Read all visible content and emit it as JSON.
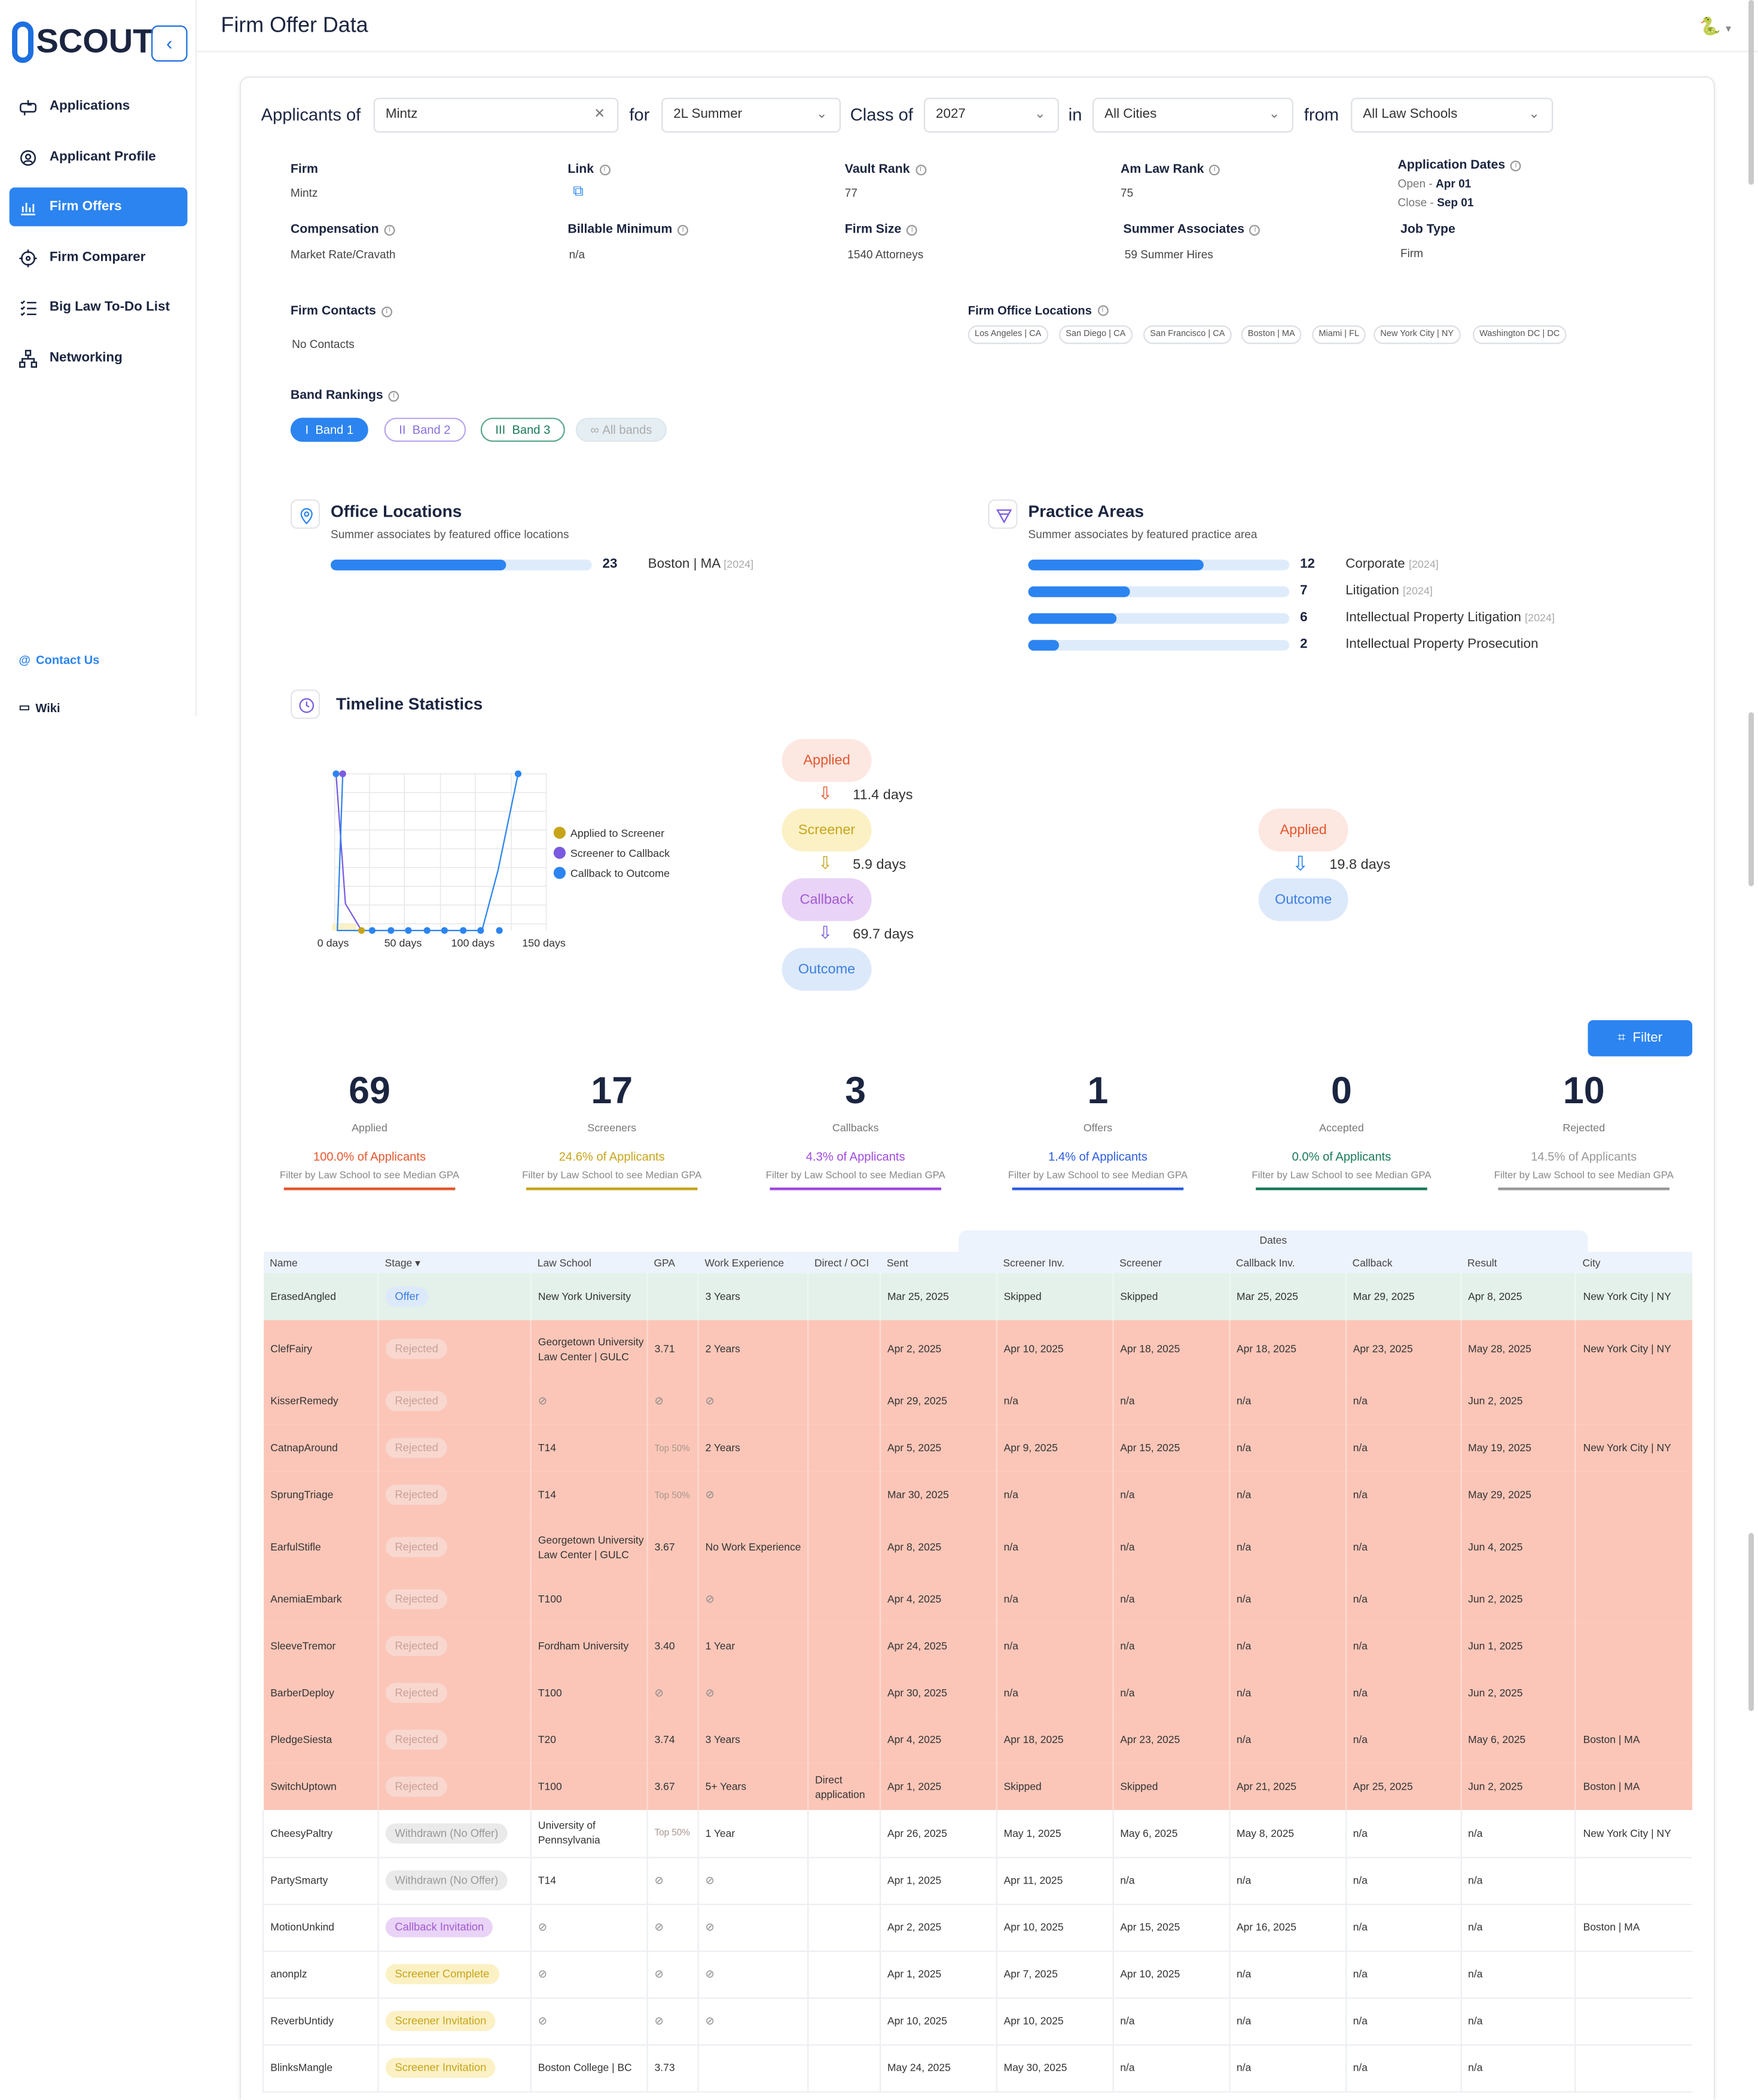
{
  "app": {
    "logo": "SCOUT",
    "page_title": "Firm Offer Data"
  },
  "sidebar": {
    "items": [
      {
        "label": "Applications",
        "icon": "mailbox-icon"
      },
      {
        "label": "Applicant Profile",
        "icon": "profile-gear-icon"
      },
      {
        "label": "Firm Offers",
        "icon": "bar-chart-icon"
      },
      {
        "label": "Firm Comparer",
        "icon": "crosshair-icon"
      },
      {
        "label": "Big Law To-Do List",
        "icon": "checklist-icon"
      },
      {
        "label": "Networking",
        "icon": "network-icon"
      }
    ],
    "contact": "Contact Us",
    "wiki": "Wiki"
  },
  "filters": {
    "applicants_of": "Applicants of",
    "firm": "Mintz",
    "for": "for",
    "program": "2L Summer",
    "class_of": "Class of",
    "year": "2027",
    "in": "in",
    "city": "All Cities",
    "from": "from",
    "school": "All Law Schools"
  },
  "info": {
    "firm_label": "Firm",
    "firm": "Mintz",
    "link_label": "Link",
    "vault_label": "Vault Rank",
    "vault": "77",
    "amlaw_label": "Am Law Rank",
    "amlaw": "75",
    "appdates_label": "Application Dates",
    "open_label": "Open - ",
    "open": "Apr 01",
    "close_label": "Close - ",
    "close": "Sep 01",
    "comp_label": "Compensation",
    "comp": "Market Rate/Cravath",
    "billable_label": "Billable Minimum",
    "billable": "n/a",
    "size_label": "Firm Size",
    "size": "1540 Attorneys",
    "summer_label": "Summer Associates",
    "summer": "59 Summer Hires",
    "jobtype_label": "Job Type",
    "jobtype": "Firm",
    "contacts_label": "Firm Contacts",
    "contacts": "No Contacts",
    "offices_label": "Firm Office Locations",
    "offices": [
      "Los Angeles | CA",
      "San Diego | CA",
      "San Francisco | CA",
      "Boston | MA",
      "Miami | FL",
      "New York City | NY",
      "Washington DC | DC"
    ],
    "band_label": "Band Rankings",
    "bands": [
      "Band 1",
      "Band 2",
      "Band 3",
      "All bands"
    ]
  },
  "office_locations": {
    "title": "Office Locations",
    "subtitle": "Summer associates by featured office locations",
    "rows": [
      {
        "count": "23",
        "label": "Boston | MA",
        "year": "[2024]",
        "fill": 0.67
      }
    ]
  },
  "practice_areas": {
    "title": "Practice Areas",
    "subtitle": "Summer associates by featured practice area",
    "rows": [
      {
        "count": "12",
        "label": "Corporate",
        "year": "[2024]",
        "fill": 0.67
      },
      {
        "count": "7",
        "label": "Litigation",
        "year": "[2024]",
        "fill": 0.39
      },
      {
        "count": "6",
        "label": "Intellectual Property Litigation",
        "year": "[2024]",
        "fill": 0.34
      },
      {
        "count": "2",
        "label": "Intellectual Property Prosecution",
        "year": "",
        "fill": 0.12
      }
    ]
  },
  "timeline": {
    "title": "Timeline Statistics",
    "legend": [
      "Applied to Screener",
      "Screener to Callback",
      "Callback to Outcome"
    ],
    "x_ticks": [
      "0 days",
      "50 days",
      "100 days",
      "150 days"
    ],
    "flow1": {
      "applied": "Applied",
      "d1": "11.4 days",
      "screener": "Screener",
      "d2": "5.9 days",
      "callback": "Callback",
      "d3": "69.7 days",
      "outcome": "Outcome"
    },
    "flow2": {
      "applied": "Applied",
      "d1": "19.8 days",
      "outcome": "Outcome"
    }
  },
  "filter_button": "Filter",
  "stats": [
    {
      "n": "69",
      "c": "Applied",
      "p": "100.0% of Applicants",
      "f": "Filter by Law School to see Median GPA",
      "color": "#e4572e"
    },
    {
      "n": "17",
      "c": "Screeners",
      "p": "24.6% of Applicants",
      "f": "Filter by Law School to see Median GPA",
      "color": "#c8a41a"
    },
    {
      "n": "3",
      "c": "Callbacks",
      "p": "4.3% of Applicants",
      "f": "Filter by Law School to see Median GPA",
      "color": "#a04ae0"
    },
    {
      "n": "1",
      "c": "Offers",
      "p": "1.4% of Applicants",
      "f": "Filter by Law School to see Median GPA",
      "color": "#2c5de0"
    },
    {
      "n": "0",
      "c": "Accepted",
      "p": "0.0% of Applicants",
      "f": "Filter by Law School to see Median GPA",
      "color": "#1a7a5a"
    },
    {
      "n": "10",
      "c": "Rejected",
      "p": "14.5% of Applicants",
      "f": "Filter by Law School to see Median GPA",
      "color": "#999999"
    }
  ],
  "table": {
    "dates_group": "Dates",
    "headers": [
      "Name",
      "Stage",
      "Law School",
      "GPA",
      "Work Experience",
      "Direct / OCI",
      "Sent",
      "Screener Inv.",
      "Screener",
      "Callback Inv.",
      "Callback",
      "Result",
      "City"
    ],
    "rows": [
      [
        "ErasedAngled",
        "Offer",
        "New York University",
        "",
        "3 Years",
        "",
        "Mar 25, 2025",
        "Skipped",
        "Skipped",
        "Mar 25, 2025",
        "Mar 29, 2025",
        "Apr 8, 2025",
        "New York City | NY"
      ],
      [
        "ClefFairy",
        "Rejected",
        "Georgetown University Law Center | GULC",
        "3.71",
        "2 Years",
        "",
        "Apr 2, 2025",
        "Apr 10, 2025",
        "Apr 18, 2025",
        "Apr 18, 2025",
        "Apr 23, 2025",
        "May 28, 2025",
        "New York City | NY"
      ],
      [
        "KisserRemedy",
        "Rejected",
        "~",
        "~",
        "~",
        "",
        "Apr 29, 2025",
        "n/a",
        "n/a",
        "n/a",
        "n/a",
        "Jun 2, 2025",
        ""
      ],
      [
        "CatnapAround",
        "Rejected",
        "T14",
        "Top 50%",
        "2 Years",
        "",
        "Apr 5, 2025",
        "Apr 9, 2025",
        "Apr 15, 2025",
        "n/a",
        "n/a",
        "May 19, 2025",
        "New York City | NY"
      ],
      [
        "SprungTriage",
        "Rejected",
        "T14",
        "Top 50%",
        "~",
        "",
        "Mar 30, 2025",
        "n/a",
        "n/a",
        "n/a",
        "n/a",
        "May 29, 2025",
        ""
      ],
      [
        "EarfulStifle",
        "Rejected",
        "Georgetown University Law Center | GULC",
        "3.67",
        "No Work Experience",
        "",
        "Apr 8, 2025",
        "n/a",
        "n/a",
        "n/a",
        "n/a",
        "Jun 4, 2025",
        ""
      ],
      [
        "AnemiaEmbark",
        "Rejected",
        "T100",
        "",
        "~",
        "",
        "Apr 4, 2025",
        "n/a",
        "n/a",
        "n/a",
        "n/a",
        "Jun 2, 2025",
        ""
      ],
      [
        "SleeveTremor",
        "Rejected",
        "Fordham University",
        "3.40",
        "1 Year",
        "",
        "Apr 24, 2025",
        "n/a",
        "n/a",
        "n/a",
        "n/a",
        "Jun 1, 2025",
        ""
      ],
      [
        "BarberDeploy",
        "Rejected",
        "T100",
        "~",
        "~",
        "",
        "Apr 30, 2025",
        "n/a",
        "n/a",
        "n/a",
        "n/a",
        "Jun 2, 2025",
        ""
      ],
      [
        "PledgeSiesta",
        "Rejected",
        "T20",
        "3.74",
        "3 Years",
        "",
        "Apr 4, 2025",
        "Apr 18, 2025",
        "Apr 23, 2025",
        "n/a",
        "n/a",
        "May 6, 2025",
        "Boston | MA"
      ],
      [
        "SwitchUptown",
        "Rejected",
        "T100",
        "3.67",
        "5+ Years",
        "Direct application",
        "Apr 1, 2025",
        "Skipped",
        "Skipped",
        "Apr 21, 2025",
        "Apr 25, 2025",
        "Jun 2, 2025",
        "Boston | MA"
      ],
      [
        "CheesyPaltry",
        "Withdrawn (No Offer)",
        "University of Pennsylvania",
        "Top 50%",
        "1 Year",
        "",
        "Apr 26, 2025",
        "May 1, 2025",
        "May 6, 2025",
        "May 8, 2025",
        "n/a",
        "n/a",
        "New York City | NY"
      ],
      [
        "PartySmarty",
        "Withdrawn (No Offer)",
        "T14",
        "~",
        "~",
        "",
        "Apr 1, 2025",
        "Apr 11, 2025",
        "n/a",
        "n/a",
        "n/a",
        "n/a",
        ""
      ],
      [
        "MotionUnkind",
        "Callback Invitation",
        "~",
        "~",
        "~",
        "",
        "Apr 2, 2025",
        "Apr 10, 2025",
        "Apr 15, 2025",
        "Apr 16, 2025",
        "n/a",
        "n/a",
        "Boston | MA"
      ],
      [
        "anonplz",
        "Screener Complete",
        "~",
        "~",
        "~",
        "",
        "Apr 1, 2025",
        "Apr 7, 2025",
        "Apr 10, 2025",
        "n/a",
        "n/a",
        "n/a",
        ""
      ],
      [
        "ReverbUntidy",
        "Screener Invitation",
        "~",
        "~",
        "~",
        "",
        "Apr 10, 2025",
        "Apr 10, 2025",
        "n/a",
        "n/a",
        "n/a",
        "n/a",
        ""
      ],
      [
        "BlinksMangle",
        "Screener Invitation",
        "Boston College | BC",
        "3.73",
        "",
        "",
        "May 24, 2025",
        "May 30, 2025",
        "n/a",
        "n/a",
        "n/a",
        "n/a",
        ""
      ]
    ]
  }
}
